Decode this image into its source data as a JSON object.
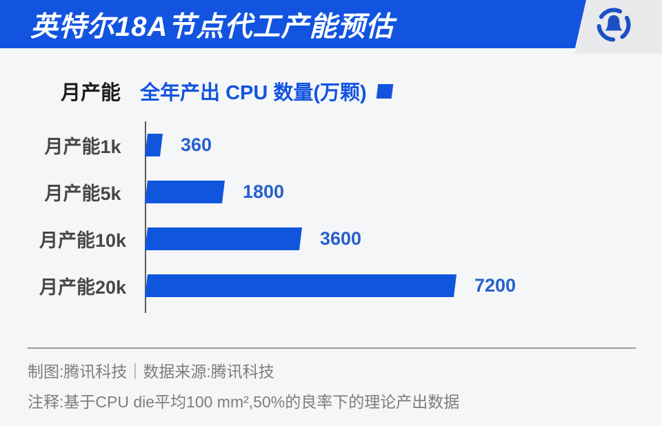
{
  "header": {
    "title": "英特尔18A节点代工产能预估",
    "logo": "tencent-tech-penguin-logo"
  },
  "legend": {
    "category_label": "月产能",
    "series_label": "全年产出 CPU 数量(万颗)"
  },
  "chart_data": {
    "type": "bar",
    "orientation": "horizontal",
    "title": "英特尔18A节点代工产能预估",
    "category_axis_label": "月产能",
    "series_label": "全年产出 CPU 数量(万颗)",
    "categories": [
      "月产能1k",
      "月产能5k",
      "月产能10k",
      "月产能20k"
    ],
    "values": [
      360,
      1800,
      3600,
      7200
    ],
    "xlim": [
      0,
      7200
    ],
    "grid": false,
    "value_labels_shown": true,
    "bar_color": "#0f56dc",
    "value_label_color": "#2760cb",
    "axis_line_color": "#5a5a5a"
  },
  "footer": {
    "credit": "制图:腾讯科技｜数据来源:腾讯科技",
    "note": "注释:基于CPU die平均100 mm²,50%的良率下的理论产出数据"
  },
  "colors": {
    "banner_blue": "#1254df",
    "header_gray": "#e8e9eb",
    "background": "#f5f6f8",
    "bar_blue": "#0f56dc",
    "value_blue": "#2760cb",
    "footer_gray": "#7d7d7d"
  }
}
